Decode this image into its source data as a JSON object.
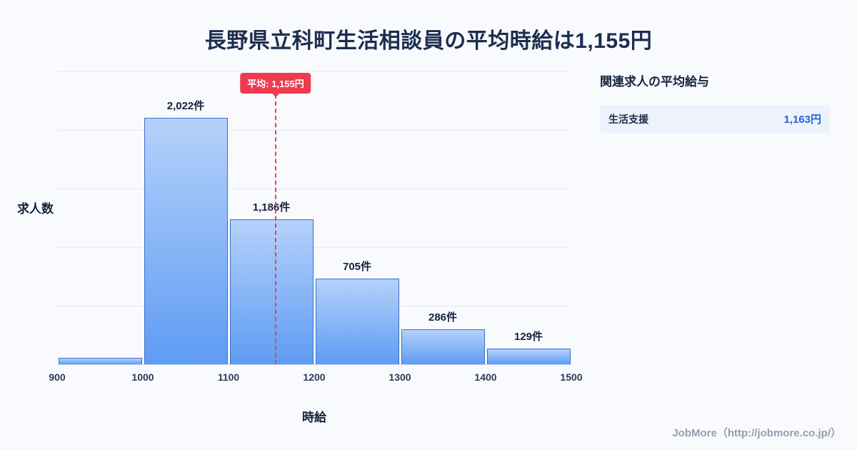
{
  "title": "長野県立科町生活相談員の平均時給は1,155円",
  "chart_data": {
    "type": "bar",
    "histogram": true,
    "title": "長野県立科町生活相談員の平均時給は1,155円",
    "xlabel": "時給",
    "ylabel": "求人数",
    "x_range": [
      900,
      1500
    ],
    "x_ticks": [
      "900",
      "1000",
      "1100",
      "1200",
      "1300",
      "1400",
      "1500"
    ],
    "categories": [
      "900-1000",
      "1000-1100",
      "1100-1200",
      "1200-1300",
      "1300-1400",
      "1400-1500"
    ],
    "values": [
      52,
      2022,
      1186,
      705,
      286,
      129
    ],
    "bar_labels": [
      "",
      "2,022件",
      "1,186件",
      "705件",
      "286件",
      "129件"
    ],
    "ylim": [
      0,
      2400
    ],
    "grid": true,
    "average": {
      "value": 1155,
      "label": "平均: 1,155円"
    },
    "colors": {
      "bar_fill_top": "#b5d1fa",
      "bar_fill_bottom": "#5e9cf4",
      "bar_border": "#3a70c9",
      "average_line": "#ee3b50",
      "background": "#f8fafd"
    }
  },
  "side_panel": {
    "title": "関連求人の平均給与",
    "rows": [
      {
        "label": "生活支援",
        "value": "1,163円"
      }
    ]
  },
  "footer": "JobMore（http://jobmore.co.jp/）"
}
